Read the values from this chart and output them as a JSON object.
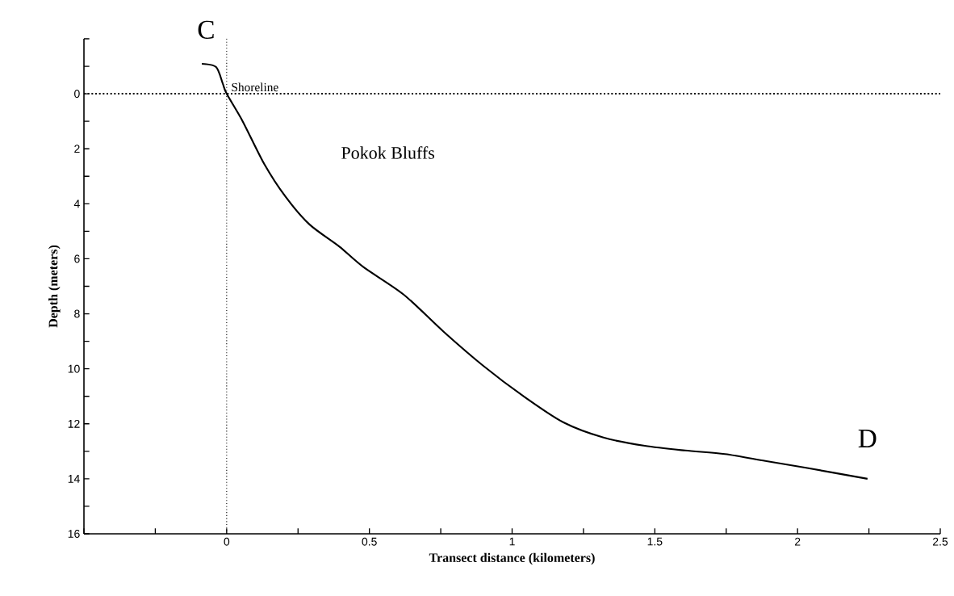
{
  "chart_data": {
    "type": "line",
    "xlabel": "Transect distance (kilometers)",
    "ylabel": "Depth (meters)",
    "x": [
      -0.087,
      -0.037,
      -0.014,
      0,
      0.056,
      0.132,
      0.206,
      0.29,
      0.394,
      0.479,
      0.62,
      0.76,
      0.9,
      1.04,
      1.18,
      1.32,
      1.465,
      1.606,
      1.746,
      1.887,
      2.03,
      2.245
    ],
    "series": [
      {
        "color": "#000000",
        "values": [
          -1.09,
          -0.97,
          -0.38,
          0,
          1.0,
          2.56,
          3.74,
          4.75,
          5.55,
          6.3,
          7.3,
          8.65,
          9.9,
          11.0,
          11.95,
          12.5,
          12.8,
          12.97,
          13.1,
          13.35,
          13.6,
          14.0
        ]
      }
    ],
    "xlim": [
      -0.5,
      2.5
    ],
    "xticks": [
      {
        "value": -0.5,
        "label": null
      },
      {
        "value": -0.25,
        "label": null
      },
      0,
      {
        "value": 0.25,
        "label": null
      },
      0.5,
      {
        "value": 0.75,
        "label": null
      },
      1,
      {
        "value": 1.25,
        "label": null
      },
      1.5,
      {
        "value": 1.75,
        "label": null
      },
      2,
      {
        "value": 2.25,
        "label": null
      },
      2.5
    ],
    "ylim": [
      16,
      -2
    ],
    "yticks": [
      {
        "value": -2,
        "label": null
      },
      {
        "value": -1,
        "label": null
      },
      0,
      {
        "value": 1,
        "label": null
      },
      2,
      {
        "value": 3,
        "label": null
      },
      4,
      {
        "value": 5,
        "label": null
      },
      6,
      {
        "value": 7,
        "label": null
      },
      8,
      {
        "value": 9,
        "label": null
      },
      10,
      {
        "value": 11,
        "label": null
      },
      12,
      {
        "value": 13,
        "label": null
      },
      14,
      {
        "value": 15,
        "label": null
      },
      16
    ],
    "ref_lines": [
      {
        "axis": "y",
        "value": 0,
        "line_style": "dotted"
      },
      {
        "axis": "x",
        "value": 0,
        "line_style": "dotted",
        "label": "Shoreline"
      }
    ],
    "annotations": [
      {
        "text": "C",
        "x": -0.087,
        "y": -1.09
      },
      {
        "text": "D",
        "x": 2.245,
        "y": 14.0
      },
      "Pokok Bluffs"
    ],
    "grid": false,
    "marker": "none",
    "line_style": "solid"
  }
}
